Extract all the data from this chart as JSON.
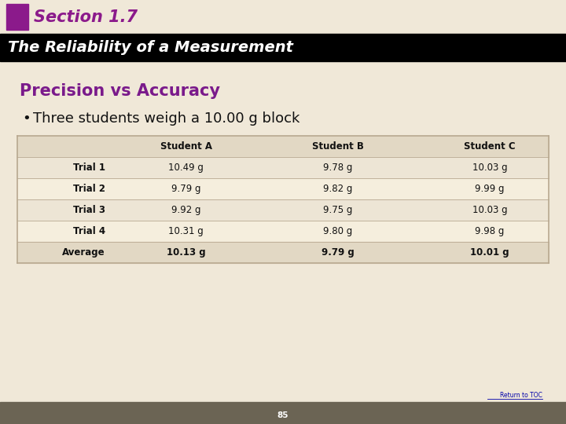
{
  "section_title": "Section 1.7",
  "main_title": "The Reliability of a Measurement",
  "subtitle": "Precision vs Accuracy",
  "bullet": "Three students weigh a 10.00 g block",
  "table_headers": [
    "",
    "Student A",
    "Student B",
    "Student C"
  ],
  "table_rows": [
    [
      "Trial 1",
      "10.49 g",
      "9.78 g",
      "10.03 g"
    ],
    [
      "Trial 2",
      "9.79 g",
      "9.82 g",
      "9.99 g"
    ],
    [
      "Trial 3",
      "9.92 g",
      "9.75 g",
      "10.03 g"
    ],
    [
      "Trial 4",
      "10.31 g",
      "9.80 g",
      "9.98 g"
    ],
    [
      "Average",
      "10.13 g",
      "9.79 g",
      "10.01 g"
    ]
  ],
  "bg_color": "#f0e8d8",
  "black_bar_color": "#000000",
  "section_title_color": "#8b1a8b",
  "main_title_color": "#ffffff",
  "subtitle_color": "#7a1a8b",
  "bullet_color": "#111111",
  "table_header_bg": "#e2d8c4",
  "table_row_bg_even": "#ede5d5",
  "table_row_bg_odd": "#f5eedd",
  "table_border_color": "#b8a890",
  "table_header_text_color": "#111111",
  "table_data_color": "#111111",
  "page_number": "85",
  "return_to_toc_color": "#0000aa",
  "bottom_bar_color": "#6b6454",
  "purple_accent_color": "#8b1a8b"
}
